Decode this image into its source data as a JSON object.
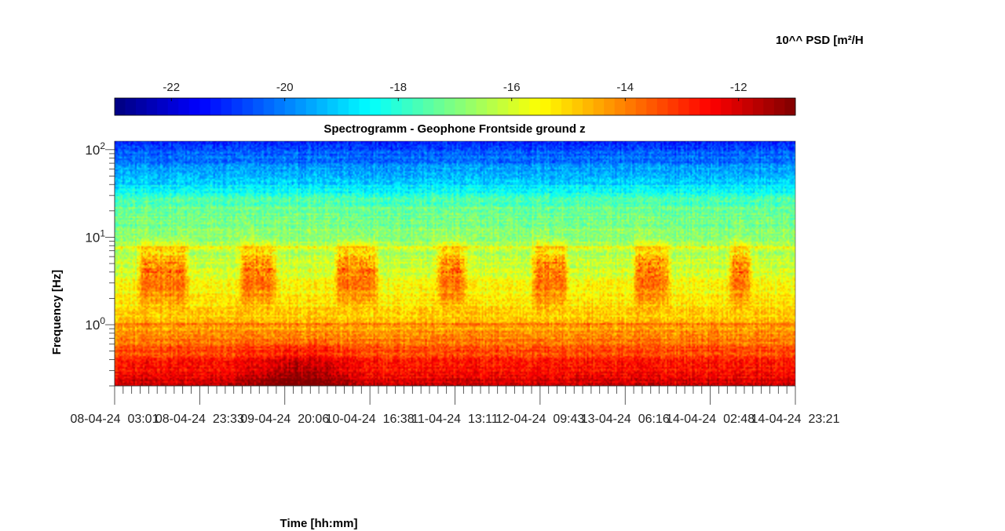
{
  "chart_data": {
    "type": "heatmap",
    "title": "Spectrogramm - Geophone Frontside ground z",
    "xlabel": "Time [hh:mm]",
    "ylabel": "Frequency [Hz]",
    "yscale": "log",
    "ylim": [
      0.2,
      125
    ],
    "x_tick_labels": [
      "08-04-24  03:01",
      "08-04-24  23:33",
      "09-04-24  20:06",
      "10-04-24  16:38",
      "11-04-24  13:11",
      "12-04-24  09:43",
      "13-04-24  06:16",
      "14-04-24  02:48",
      "14-04-24  23:21"
    ],
    "y_ticks": [
      {
        "base": "10",
        "exp": "0",
        "value": 1
      },
      {
        "base": "10",
        "exp": "1",
        "value": 10
      },
      {
        "base": "10",
        "exp": "2",
        "value": 100
      }
    ],
    "colorbar": {
      "label": "10^^ PSD [m²/H",
      "colormap": "jet",
      "range": [
        -23,
        -11
      ],
      "ticks": [
        "-22",
        "-20",
        "-18",
        "-16",
        "-14",
        "-12"
      ],
      "tick_values": [
        -22,
        -20,
        -18,
        -16,
        -14,
        -12
      ],
      "placement": "top"
    },
    "grid": false,
    "activity_periods": [
      {
        "start": 0.03,
        "end": 0.11
      },
      {
        "start": 0.18,
        "end": 0.24
      },
      {
        "start": 0.32,
        "end": 0.39
      },
      {
        "start": 0.47,
        "end": 0.52
      },
      {
        "start": 0.61,
        "end": 0.67
      },
      {
        "start": 0.76,
        "end": 0.82
      },
      {
        "start": 0.9,
        "end": 0.94
      }
    ]
  }
}
